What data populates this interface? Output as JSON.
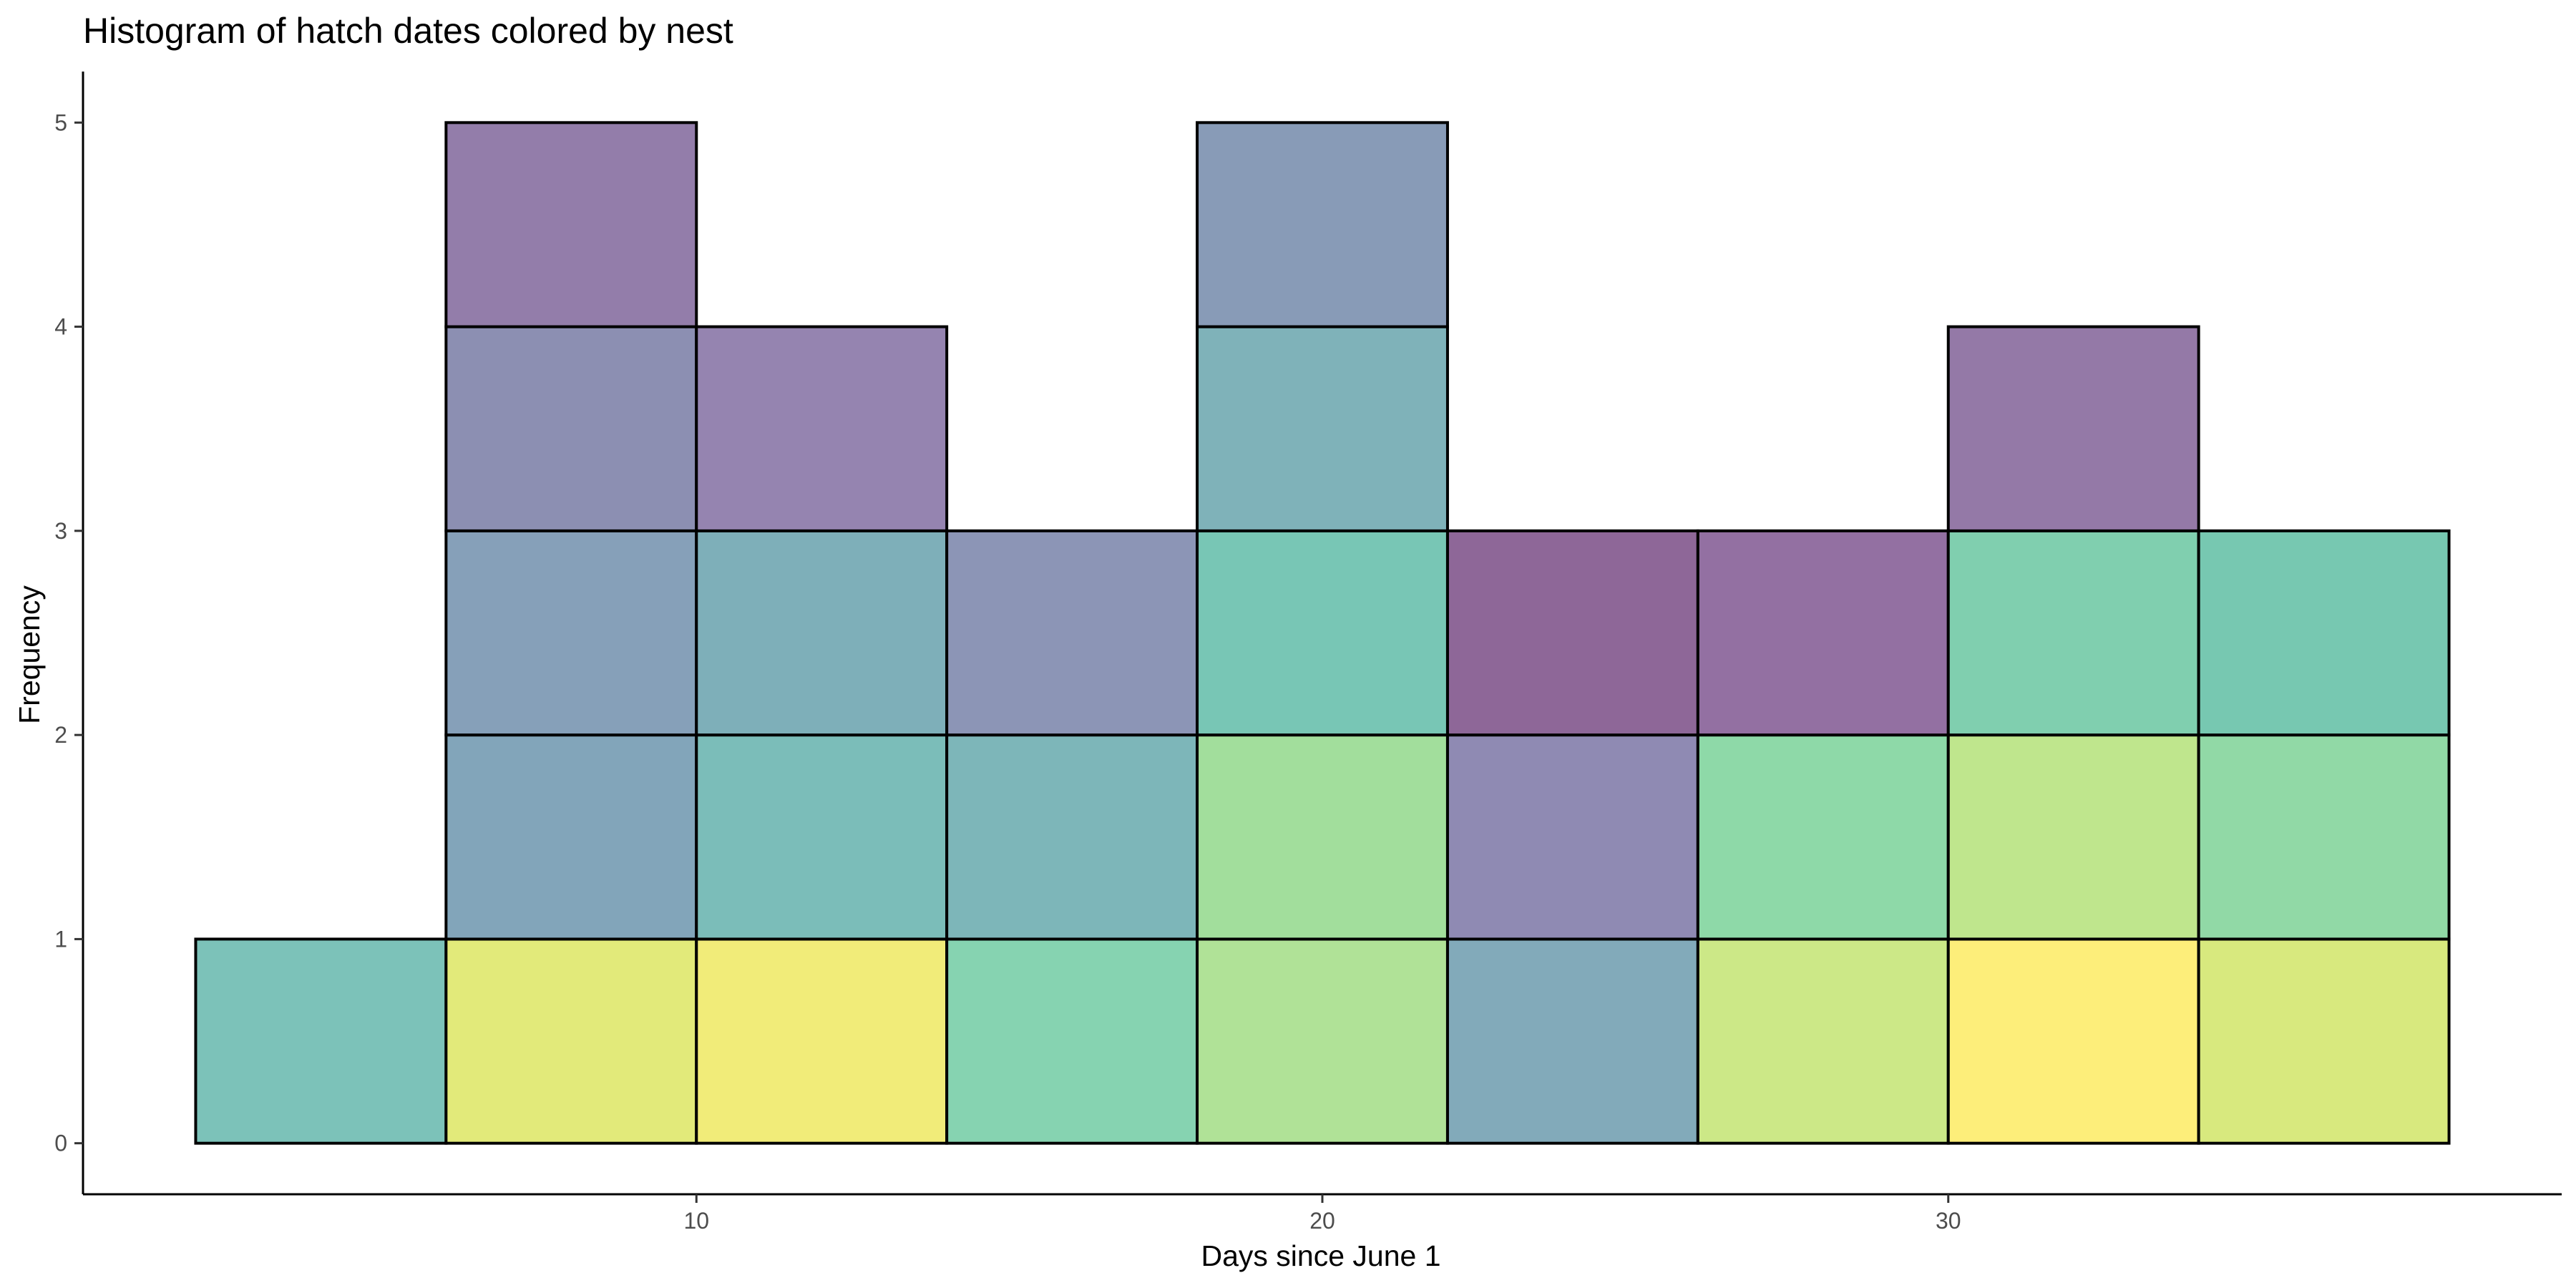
{
  "chart_data": {
    "type": "bar",
    "subtype": "stacked-histogram",
    "title": "Histogram of hatch dates colored by nest",
    "xlabel": "Days since June 1",
    "ylabel": "Frequency",
    "xlim": [
      0.2,
      39.8
    ],
    "ylim": [
      -0.25,
      5.25
    ],
    "x_ticks": [
      10,
      20,
      30
    ],
    "y_ticks": [
      0,
      1,
      2,
      3,
      4,
      5
    ],
    "grid": false,
    "legend": "none",
    "bin_width": 4,
    "bins": [
      {
        "x_start": 2,
        "x_end": 6,
        "count": 1,
        "stack_colors": [
          "#7cc2b9"
        ]
      },
      {
        "x_start": 6,
        "x_end": 10,
        "count": 5,
        "stack_colors": [
          "#e2ea7a",
          "#82a5ba",
          "#86a0b9",
          "#8c8fb2",
          "#937daa"
        ]
      },
      {
        "x_start": 10,
        "x_end": 14,
        "count": 4,
        "stack_colors": [
          "#f1ec79",
          "#7bbdb9",
          "#7eafb9",
          "#9584b0"
        ]
      },
      {
        "x_start": 14,
        "x_end": 18,
        "count": 3,
        "stack_colors": [
          "#86d3b1",
          "#7db6b9",
          "#8c95b6"
        ]
      },
      {
        "x_start": 18,
        "x_end": 22,
        "count": 5,
        "stack_colors": [
          "#b0e297",
          "#a2de9c",
          "#78c6b5",
          "#7fb2b9",
          "#889bb7"
        ]
      },
      {
        "x_start": 22,
        "x_end": 26,
        "count": 3,
        "stack_colors": [
          "#82aaba",
          "#8f8ab3",
          "#8e6798"
        ]
      },
      {
        "x_start": 26,
        "x_end": 30,
        "count": 3,
        "stack_colors": [
          "#cce887",
          "#8ed9a8",
          "#9370a2"
        ]
      },
      {
        "x_start": 30,
        "x_end": 34,
        "count": 4,
        "stack_colors": [
          "#fdee7a",
          "#bfe68d",
          "#80cfaf",
          "#9479a7"
        ]
      },
      {
        "x_start": 34,
        "x_end": 38,
        "count": 3,
        "stack_colors": [
          "#d8e97e",
          "#91d9a6",
          "#77c8b1"
        ]
      }
    ],
    "colors": {
      "bar_outline": "#000000",
      "axis_line": "#000000",
      "tick_label": "#4d4d4d",
      "background": "#ffffff"
    }
  }
}
